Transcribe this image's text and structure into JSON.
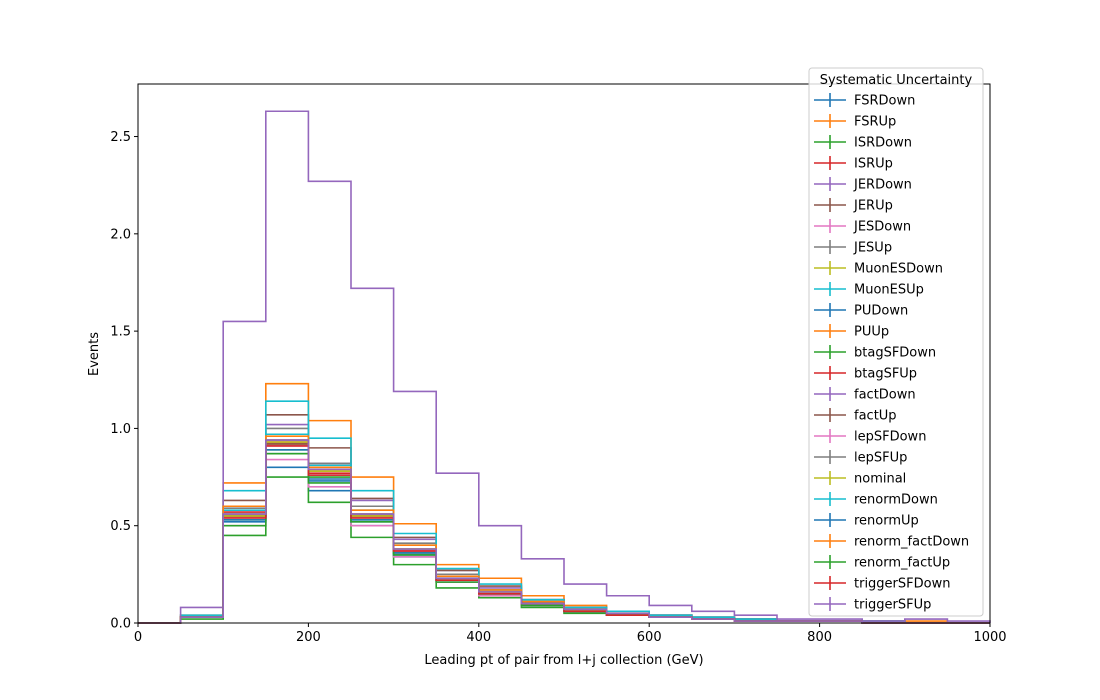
{
  "chart_data": {
    "type": "step",
    "xlabel": "Leading pt of pair from l+j collection (GeV)",
    "ylabel": "Events",
    "xlim": [
      0,
      1000
    ],
    "ylim": [
      0,
      2.77
    ],
    "xticks": [
      "0",
      "200",
      "400",
      "600",
      "800",
      "1000"
    ],
    "yticks": [
      "0.0",
      "0.5",
      "1.0",
      "1.5",
      "2.0",
      "2.5"
    ],
    "grid": false,
    "legend_title": "Systematic Uncertainty",
    "legend_position": "top-right",
    "bin_edges": [
      0,
      50,
      100,
      150,
      200,
      250,
      300,
      350,
      400,
      450,
      500,
      550,
      600,
      650,
      700,
      750,
      800,
      850,
      900,
      950,
      1000
    ],
    "series": [
      {
        "name": "FSRDown",
        "color": "#1f77b4",
        "values": [
          0,
          0.03,
          0.55,
          0.8,
          0.68,
          0.5,
          0.34,
          0.21,
          0.14,
          0.09,
          0.06,
          0.04,
          0.03,
          0.02,
          0.01,
          0.01,
          0.01,
          0.0,
          0.0,
          0.0
        ]
      },
      {
        "name": "FSRUp",
        "color": "#ff7f0e",
        "values": [
          0,
          0.04,
          0.72,
          1.23,
          1.04,
          0.75,
          0.51,
          0.3,
          0.23,
          0.14,
          0.09,
          0.06,
          0.04,
          0.03,
          0.02,
          0.01,
          0.01,
          0.01,
          0.01,
          0.0
        ]
      },
      {
        "name": "ISRDown",
        "color": "#2ca02c",
        "values": [
          0,
          0.02,
          0.45,
          0.75,
          0.62,
          0.44,
          0.3,
          0.18,
          0.13,
          0.08,
          0.05,
          0.04,
          0.03,
          0.02,
          0.01,
          0.01,
          0.01,
          0.0,
          0.0,
          0.0
        ]
      },
      {
        "name": "ISRUp",
        "color": "#d62728",
        "values": [
          0,
          0.03,
          0.57,
          0.93,
          0.78,
          0.55,
          0.37,
          0.23,
          0.16,
          0.1,
          0.07,
          0.05,
          0.03,
          0.02,
          0.01,
          0.01,
          0.01,
          0.01,
          0.0,
          0.0
        ]
      },
      {
        "name": "JERDown",
        "color": "#9467bd",
        "values": [
          0,
          0.03,
          0.6,
          1.02,
          0.82,
          0.63,
          0.43,
          0.27,
          0.18,
          0.12,
          0.08,
          0.05,
          0.04,
          0.03,
          0.02,
          0.01,
          0.01,
          0.01,
          0.0,
          0.0
        ]
      },
      {
        "name": "JERUp",
        "color": "#8c564b",
        "values": [
          0,
          0.03,
          0.63,
          1.07,
          0.9,
          0.64,
          0.44,
          0.27,
          0.19,
          0.12,
          0.08,
          0.05,
          0.04,
          0.03,
          0.02,
          0.01,
          0.01,
          0.01,
          0.0,
          0.0
        ]
      },
      {
        "name": "JESDown",
        "color": "#e377c2",
        "values": [
          0,
          0.03,
          0.5,
          0.84,
          0.7,
          0.5,
          0.34,
          0.21,
          0.14,
          0.09,
          0.06,
          0.04,
          0.03,
          0.02,
          0.01,
          0.01,
          0.01,
          0.0,
          0.0,
          0.0
        ]
      },
      {
        "name": "JESUp",
        "color": "#7f7f7f",
        "values": [
          0,
          0.03,
          0.59,
          1.0,
          0.82,
          0.6,
          0.41,
          0.25,
          0.17,
          0.11,
          0.07,
          0.05,
          0.04,
          0.03,
          0.02,
          0.01,
          0.01,
          0.01,
          0.0,
          0.0
        ]
      },
      {
        "name": "MuonESDown",
        "color": "#bcbd22",
        "values": [
          0,
          0.03,
          0.55,
          0.92,
          0.78,
          0.56,
          0.38,
          0.23,
          0.16,
          0.1,
          0.07,
          0.05,
          0.03,
          0.02,
          0.01,
          0.01,
          0.01,
          0.0,
          0.0,
          0.0
        ]
      },
      {
        "name": "MuonESUp",
        "color": "#17becf",
        "values": [
          0,
          0.04,
          0.68,
          1.14,
          0.95,
          0.68,
          0.46,
          0.28,
          0.2,
          0.12,
          0.08,
          0.06,
          0.04,
          0.03,
          0.02,
          0.01,
          0.01,
          0.01,
          0.0,
          0.0
        ]
      },
      {
        "name": "PUDown",
        "color": "#1f77b4",
        "values": [
          0,
          0.03,
          0.52,
          0.87,
          0.73,
          0.52,
          0.35,
          0.22,
          0.15,
          0.1,
          0.06,
          0.04,
          0.03,
          0.02,
          0.01,
          0.01,
          0.01,
          0.0,
          0.0,
          0.0
        ]
      },
      {
        "name": "PUUp",
        "color": "#ff7f0e",
        "values": [
          0,
          0.03,
          0.56,
          0.94,
          0.79,
          0.56,
          0.38,
          0.23,
          0.16,
          0.1,
          0.07,
          0.05,
          0.03,
          0.02,
          0.01,
          0.01,
          0.01,
          0.0,
          0.0,
          0.0
        ]
      },
      {
        "name": "btagSFDown",
        "color": "#2ca02c",
        "values": [
          0,
          0.03,
          0.53,
          0.89,
          0.75,
          0.53,
          0.36,
          0.22,
          0.15,
          0.1,
          0.06,
          0.04,
          0.03,
          0.02,
          0.01,
          0.01,
          0.01,
          0.0,
          0.0,
          0.0
        ]
      },
      {
        "name": "btagSFUp",
        "color": "#d62728",
        "values": [
          0,
          0.03,
          0.55,
          0.92,
          0.77,
          0.55,
          0.37,
          0.23,
          0.16,
          0.1,
          0.07,
          0.05,
          0.03,
          0.02,
          0.01,
          0.01,
          0.01,
          0.0,
          0.0,
          0.0
        ]
      },
      {
        "name": "factDown",
        "color": "#9467bd",
        "values": [
          0,
          0.08,
          1.55,
          2.63,
          2.27,
          1.72,
          1.19,
          0.77,
          0.5,
          0.33,
          0.2,
          0.14,
          0.09,
          0.06,
          0.04,
          0.02,
          0.02,
          0.01,
          0.02,
          0.01
        ]
      },
      {
        "name": "factUp",
        "color": "#8c564b",
        "values": [
          0,
          0.03,
          0.55,
          0.92,
          0.76,
          0.55,
          0.37,
          0.23,
          0.16,
          0.1,
          0.07,
          0.05,
          0.03,
          0.02,
          0.01,
          0.01,
          0.01,
          0.0,
          0.0,
          0.0
        ]
      },
      {
        "name": "lepSFDown",
        "color": "#e377c2",
        "values": [
          0,
          0.03,
          0.54,
          0.91,
          0.76,
          0.54,
          0.37,
          0.22,
          0.15,
          0.1,
          0.06,
          0.04,
          0.03,
          0.02,
          0.01,
          0.01,
          0.01,
          0.0,
          0.0,
          0.0
        ]
      },
      {
        "name": "lepSFUp",
        "color": "#7f7f7f",
        "values": [
          0,
          0.03,
          0.56,
          0.94,
          0.79,
          0.56,
          0.38,
          0.23,
          0.16,
          0.1,
          0.07,
          0.05,
          0.03,
          0.02,
          0.01,
          0.01,
          0.01,
          0.0,
          0.0,
          0.0
        ]
      },
      {
        "name": "nominal",
        "color": "#bcbd22",
        "values": [
          0,
          0.03,
          0.55,
          0.93,
          0.78,
          0.55,
          0.38,
          0.23,
          0.16,
          0.1,
          0.07,
          0.05,
          0.03,
          0.02,
          0.01,
          0.01,
          0.01,
          0.0,
          0.0,
          0.0
        ]
      },
      {
        "name": "renormDown",
        "color": "#17becf",
        "values": [
          0,
          0.03,
          0.58,
          0.97,
          0.81,
          0.58,
          0.4,
          0.24,
          0.17,
          0.11,
          0.07,
          0.05,
          0.03,
          0.02,
          0.01,
          0.01,
          0.01,
          0.0,
          0.0,
          0.0
        ]
      },
      {
        "name": "renormUp",
        "color": "#1f77b4",
        "values": [
          0,
          0.03,
          0.53,
          0.89,
          0.74,
          0.53,
          0.36,
          0.22,
          0.15,
          0.1,
          0.06,
          0.04,
          0.03,
          0.02,
          0.01,
          0.01,
          0.01,
          0.0,
          0.0,
          0.0
        ]
      },
      {
        "name": "renorm_factDown",
        "color": "#ff7f0e",
        "values": [
          0,
          0.03,
          0.6,
          0.96,
          0.8,
          0.58,
          0.4,
          0.24,
          0.17,
          0.11,
          0.07,
          0.05,
          0.03,
          0.02,
          0.01,
          0.01,
          0.01,
          0.0,
          0.0,
          0.0
        ]
      },
      {
        "name": "renorm_factUp",
        "color": "#2ca02c",
        "values": [
          0,
          0.03,
          0.5,
          0.87,
          0.72,
          0.52,
          0.35,
          0.21,
          0.15,
          0.09,
          0.06,
          0.04,
          0.03,
          0.02,
          0.01,
          0.01,
          0.01,
          0.0,
          0.0,
          0.0
        ]
      },
      {
        "name": "triggerSFDown",
        "color": "#d62728",
        "values": [
          0,
          0.03,
          0.54,
          0.91,
          0.76,
          0.54,
          0.37,
          0.22,
          0.15,
          0.1,
          0.06,
          0.04,
          0.03,
          0.02,
          0.01,
          0.01,
          0.01,
          0.0,
          0.0,
          0.0
        ]
      },
      {
        "name": "triggerSFUp",
        "color": "#9467bd",
        "values": [
          0,
          0.03,
          0.56,
          0.94,
          0.79,
          0.56,
          0.38,
          0.23,
          0.16,
          0.1,
          0.07,
          0.05,
          0.03,
          0.02,
          0.01,
          0.01,
          0.01,
          0.0,
          0.0,
          0.0
        ]
      }
    ]
  }
}
